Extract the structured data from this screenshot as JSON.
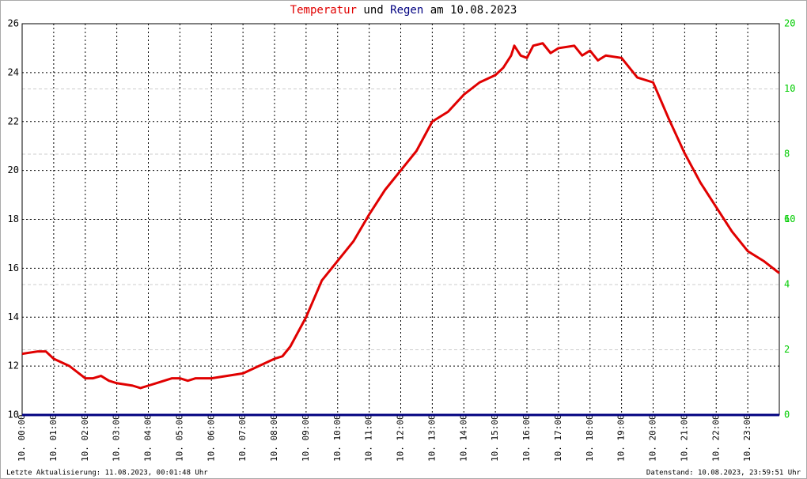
{
  "chart_data": {
    "type": "line",
    "title_parts": [
      "und",
      "am 10.08.2023"
    ],
    "x": [
      0,
      0.5,
      0.75,
      1,
      1.5,
      2,
      2.25,
      2.5,
      2.75,
      3,
      3.5,
      3.75,
      4,
      4.25,
      4.5,
      4.75,
      5,
      5.25,
      5.5,
      6,
      6.5,
      7,
      7.5,
      8,
      8.25,
      8.5,
      9,
      9.5,
      10,
      10.5,
      11,
      11.5,
      12,
      12.5,
      13,
      13.5,
      14,
      14.5,
      15,
      15.25,
      15.5,
      15.6,
      15.8,
      16,
      16.2,
      16.5,
      16.75,
      17,
      17.5,
      17.75,
      18,
      18.25,
      18.5,
      19,
      19.5,
      20,
      20.5,
      21,
      21.5,
      22,
      22.5,
      23,
      23.5,
      24
    ],
    "series": [
      {
        "name": "Temperatur",
        "color": "#e00000",
        "axis": "y",
        "values": [
          12.5,
          12.6,
          12.6,
          12.3,
          12.0,
          11.5,
          11.5,
          11.6,
          11.4,
          11.3,
          11.2,
          11.1,
          11.2,
          11.3,
          11.4,
          11.5,
          11.5,
          11.4,
          11.5,
          11.5,
          11.6,
          11.7,
          12.0,
          12.3,
          12.4,
          12.8,
          14.0,
          15.5,
          16.3,
          17.1,
          18.2,
          19.2,
          20.0,
          20.8,
          22.0,
          22.4,
          23.1,
          23.6,
          23.9,
          24.2,
          24.7,
          25.1,
          24.7,
          24.6,
          25.1,
          25.2,
          24.8,
          25.0,
          25.1,
          24.7,
          24.9,
          24.5,
          24.7,
          24.6,
          23.8,
          23.6,
          22.1,
          20.7,
          19.5,
          18.5,
          17.5,
          16.7,
          16.3,
          15.8
        ]
      },
      {
        "name": "Regen",
        "color": "#000080",
        "axis": "y2",
        "values": [
          0,
          0,
          0,
          0,
          0,
          0,
          0,
          0,
          0,
          0,
          0,
          0,
          0,
          0,
          0,
          0,
          0,
          0,
          0,
          0,
          0,
          0,
          0,
          0,
          0,
          0,
          0,
          0,
          0,
          0,
          0,
          0,
          0,
          0,
          0,
          0,
          0,
          0,
          0,
          0,
          0,
          0,
          0,
          0,
          0,
          0,
          0,
          0,
          0,
          0,
          0,
          0,
          0,
          0,
          0,
          0,
          0,
          0,
          0,
          0,
          0,
          0,
          0,
          0
        ]
      }
    ],
    "xlim": [
      0,
      24
    ],
    "xticks": [
      {
        "value": 0,
        "label": "10. 00:00"
      },
      {
        "value": 1,
        "label": "10. 01:00"
      },
      {
        "value": 2,
        "label": "10. 02:00"
      },
      {
        "value": 3,
        "label": "10. 03:00"
      },
      {
        "value": 4,
        "label": "10. 04:00"
      },
      {
        "value": 5,
        "label": "10. 05:00"
      },
      {
        "value": 6,
        "label": "10. 06:00"
      },
      {
        "value": 7,
        "label": "10. 07:00"
      },
      {
        "value": 8,
        "label": "10. 08:00"
      },
      {
        "value": 9,
        "label": "10. 09:00"
      },
      {
        "value": 10,
        "label": "10. 10:00"
      },
      {
        "value": 11,
        "label": "10. 11:00"
      },
      {
        "value": 12,
        "label": "10. 12:00"
      },
      {
        "value": 13,
        "label": "10. 13:00"
      },
      {
        "value": 14,
        "label": "10. 14:00"
      },
      {
        "value": 15,
        "label": "10. 15:00"
      },
      {
        "value": 16,
        "label": "10. 16:00"
      },
      {
        "value": 17,
        "label": "10. 17:00"
      },
      {
        "value": 18,
        "label": "10. 18:00"
      },
      {
        "value": 19,
        "label": "10. 19:00"
      },
      {
        "value": 20,
        "label": "10. 20:00"
      },
      {
        "value": 21,
        "label": "10. 21:00"
      },
      {
        "value": 22,
        "label": "10. 22:00"
      },
      {
        "value": 23,
        "label": "10. 23:00"
      }
    ],
    "ylim": [
      10,
      26
    ],
    "yticks": [
      10,
      12,
      14,
      16,
      18,
      20,
      22,
      24,
      26
    ],
    "y2lim": [
      0,
      12
    ],
    "y2ticks": [
      0,
      2,
      4,
      6,
      8,
      10
    ],
    "y2_extra_labels": [
      "20",
      "10"
    ],
    "grid": true,
    "footer_left": "Letzte Aktualisierung: 11.08.2023, 00:01:48 Uhr",
    "footer_right": "Datenstand: 10.08.2023, 23:59:51 Uhr"
  }
}
